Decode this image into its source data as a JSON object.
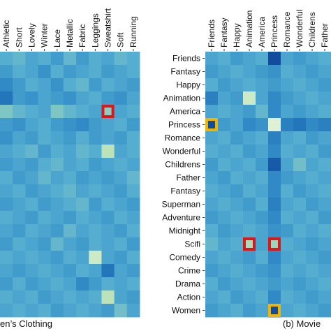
{
  "chart_data": [
    {
      "type": "heatmap",
      "caption": "en’s Clothing",
      "x_tick_labels": [
        "Athletic",
        "Short",
        "Lovely",
        "Winter",
        "Lace",
        "Metallic",
        "Fabric",
        "Leggings",
        "Sweatshirt",
        "Soft",
        "Running"
      ],
      "y_tick_labels": [],
      "colormap": [
        "#0b3d91",
        "#1f6fb8",
        "#3690c8",
        "#55aed0",
        "#83c9c2",
        "#b6dfb5",
        "#effae0"
      ],
      "highlight_color": "#d7191c",
      "highlights": [
        {
          "row": 4,
          "col": 8
        }
      ],
      "values": [
        [
          0.5,
          0.55,
          0.45,
          0.5,
          0.4,
          0.55,
          0.4,
          0.5,
          0.45,
          0.55,
          0.5
        ],
        [
          0.4,
          0.5,
          0.45,
          0.35,
          0.5,
          0.4,
          0.45,
          0.5,
          0.4,
          0.45,
          0.5
        ],
        [
          0.3,
          0.4,
          0.5,
          0.45,
          0.35,
          0.5,
          0.55,
          0.4,
          0.5,
          0.45,
          0.4
        ],
        [
          0.2,
          0.4,
          0.35,
          0.45,
          0.4,
          0.35,
          0.45,
          0.5,
          0.4,
          0.35,
          0.45
        ],
        [
          0.65,
          0.55,
          0.5,
          0.45,
          0.65,
          0.55,
          0.5,
          0.45,
          0.7,
          0.45,
          0.5
        ],
        [
          0.4,
          0.35,
          0.45,
          0.5,
          0.4,
          0.35,
          0.3,
          0.4,
          0.45,
          0.5,
          0.4
        ],
        [
          0.35,
          0.45,
          0.4,
          0.5,
          0.45,
          0.4,
          0.5,
          0.4,
          0.45,
          0.4,
          0.5
        ],
        [
          0.45,
          0.5,
          0.55,
          0.4,
          0.5,
          0.45,
          0.55,
          0.5,
          0.85,
          0.45,
          0.5
        ],
        [
          0.4,
          0.45,
          0.4,
          0.5,
          0.55,
          0.45,
          0.5,
          0.4,
          0.45,
          0.5,
          0.45
        ],
        [
          0.5,
          0.4,
          0.45,
          0.55,
          0.45,
          0.5,
          0.4,
          0.45,
          0.4,
          0.45,
          0.55
        ],
        [
          0.45,
          0.5,
          0.4,
          0.45,
          0.5,
          0.55,
          0.45,
          0.5,
          0.45,
          0.4,
          0.5
        ],
        [
          0.4,
          0.45,
          0.5,
          0.4,
          0.45,
          0.5,
          0.55,
          0.4,
          0.5,
          0.45,
          0.4
        ],
        [
          0.5,
          0.45,
          0.4,
          0.5,
          0.45,
          0.4,
          0.5,
          0.45,
          0.4,
          0.5,
          0.45
        ],
        [
          0.45,
          0.4,
          0.5,
          0.45,
          0.4,
          0.55,
          0.45,
          0.5,
          0.45,
          0.4,
          0.5
        ],
        [
          0.4,
          0.5,
          0.45,
          0.4,
          0.55,
          0.45,
          0.4,
          0.5,
          0.45,
          0.5,
          0.4
        ],
        [
          0.5,
          0.45,
          0.5,
          0.45,
          0.4,
          0.5,
          0.45,
          0.9,
          0.45,
          0.4,
          0.5
        ],
        [
          0.45,
          0.4,
          0.45,
          0.5,
          0.45,
          0.4,
          0.5,
          0.45,
          0.2,
          0.45,
          0.4
        ],
        [
          0.4,
          0.5,
          0.4,
          0.45,
          0.5,
          0.45,
          0.3,
          0.4,
          0.5,
          0.45,
          0.5
        ],
        [
          0.5,
          0.45,
          0.5,
          0.4,
          0.45,
          0.5,
          0.45,
          0.5,
          0.85,
          0.45,
          0.4
        ],
        [
          0.45,
          0.5,
          0.45,
          0.5,
          0.4,
          0.45,
          0.5,
          0.45,
          0.4,
          0.6,
          0.45
        ]
      ]
    },
    {
      "type": "heatmap",
      "caption": "(b) Movie",
      "x_tick_labels": [
        "Friends",
        "Fantasy",
        "Happy",
        "Animation",
        "America",
        "Princess",
        "Romance",
        "Wonderful",
        "Childrens",
        "Father"
      ],
      "y_tick_labels": [
        "Friends",
        "Fantasy",
        "Happy",
        "Animation",
        "America",
        "Princess",
        "Romance",
        "Wonderful",
        "Childrens",
        "Father",
        "Fantasy",
        "Superman",
        "Adventure",
        "Midnight",
        "Scifi",
        "Comedy",
        "Crime",
        "Drama",
        "Action",
        "Women"
      ],
      "colormap": [
        "#0b3d91",
        "#1f6fb8",
        "#3690c8",
        "#55aed0",
        "#83c9c2",
        "#b6dfb5",
        "#effae0"
      ],
      "highlight_colors": {
        "red": "#d7191c",
        "yellow": "#f0b400"
      },
      "highlights": [
        {
          "row": 5,
          "col": 0,
          "color": "yellow"
        },
        {
          "row": 14,
          "col": 3,
          "color": "red"
        },
        {
          "row": 14,
          "col": 5,
          "color": "red"
        },
        {
          "row": 19,
          "col": 5,
          "color": "yellow"
        }
      ],
      "values": [
        [
          0.45,
          0.5,
          0.4,
          0.45,
          0.5,
          0.05,
          0.45,
          0.4,
          0.45,
          0.5
        ],
        [
          0.4,
          0.45,
          0.5,
          0.45,
          0.4,
          0.35,
          0.5,
          0.45,
          0.4,
          0.45
        ],
        [
          0.5,
          0.4,
          0.45,
          0.5,
          0.45,
          0.4,
          0.45,
          0.5,
          0.45,
          0.4
        ],
        [
          0.25,
          0.45,
          0.4,
          0.9,
          0.45,
          0.3,
          0.4,
          0.45,
          0.5,
          0.45
        ],
        [
          0.45,
          0.5,
          0.45,
          0.4,
          0.55,
          0.3,
          0.45,
          0.4,
          0.45,
          0.5
        ],
        [
          0.05,
          0.4,
          0.45,
          0.3,
          0.35,
          0.95,
          0.25,
          0.2,
          0.3,
          0.25
        ],
        [
          0.45,
          0.5,
          0.4,
          0.45,
          0.5,
          0.25,
          0.45,
          0.5,
          0.4,
          0.45
        ],
        [
          0.5,
          0.45,
          0.5,
          0.4,
          0.45,
          0.3,
          0.5,
          0.45,
          0.5,
          0.4
        ],
        [
          0.4,
          0.5,
          0.45,
          0.5,
          0.4,
          0.1,
          0.45,
          0.6,
          0.45,
          0.5
        ],
        [
          0.45,
          0.4,
          0.5,
          0.45,
          0.5,
          0.3,
          0.4,
          0.45,
          0.5,
          0.45
        ],
        [
          0.5,
          0.45,
          0.4,
          0.5,
          0.45,
          0.3,
          0.5,
          0.4,
          0.45,
          0.5
        ],
        [
          0.45,
          0.5,
          0.45,
          0.4,
          0.5,
          0.25,
          0.45,
          0.5,
          0.4,
          0.45
        ],
        [
          0.4,
          0.45,
          0.5,
          0.45,
          0.4,
          0.3,
          0.5,
          0.45,
          0.5,
          0.4
        ],
        [
          0.5,
          0.4,
          0.45,
          0.5,
          0.45,
          0.35,
          0.4,
          0.5,
          0.45,
          0.5
        ],
        [
          0.55,
          0.45,
          0.5,
          0.8,
          0.45,
          0.75,
          0.5,
          0.45,
          0.4,
          0.45
        ],
        [
          0.45,
          0.5,
          0.45,
          0.4,
          0.5,
          0.3,
          0.45,
          0.5,
          0.45,
          0.4
        ],
        [
          0.4,
          0.45,
          0.5,
          0.45,
          0.4,
          0.35,
          0.5,
          0.45,
          0.5,
          0.45
        ],
        [
          0.5,
          0.4,
          0.45,
          0.5,
          0.45,
          0.4,
          0.45,
          0.4,
          0.45,
          0.5
        ],
        [
          0.45,
          0.5,
          0.4,
          0.45,
          0.5,
          0.3,
          0.5,
          0.45,
          0.4,
          0.45
        ],
        [
          0.4,
          0.45,
          0.5,
          0.4,
          0.45,
          0.05,
          0.45,
          0.5,
          0.45,
          0.4
        ]
      ]
    }
  ]
}
